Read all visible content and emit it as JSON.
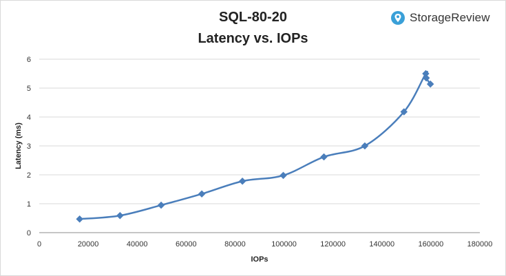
{
  "chart_data": {
    "type": "scatter",
    "title_line1": "SQL-80-20",
    "title_line2": "Latency vs. IOPs",
    "xlabel": "IOPs",
    "ylabel": "Latency (ms)",
    "xlim": [
      0,
      180000
    ],
    "ylim": [
      0,
      6
    ],
    "x_ticks": [
      "0",
      "20000",
      "40000",
      "60000",
      "80000",
      "100000",
      "120000",
      "140000",
      "160000",
      "180000"
    ],
    "y_ticks": [
      "0",
      "1",
      "2",
      "3",
      "4",
      "5",
      "6"
    ],
    "grid": "horizontal",
    "series": [
      {
        "color": "#4a7ebb",
        "marker": "diamond",
        "smoothed": true,
        "points": [
          {
            "x": 16500,
            "y": 0.47
          },
          {
            "x": 33000,
            "y": 0.59
          },
          {
            "x": 49800,
            "y": 0.95
          },
          {
            "x": 66400,
            "y": 1.34
          },
          {
            "x": 83000,
            "y": 1.78
          },
          {
            "x": 99700,
            "y": 1.98
          },
          {
            "x": 116300,
            "y": 2.62
          },
          {
            "x": 133000,
            "y": 3.0
          },
          {
            "x": 149000,
            "y": 4.18
          },
          {
            "x": 157900,
            "y": 5.5
          },
          {
            "x": 158100,
            "y": 5.35
          },
          {
            "x": 159800,
            "y": 5.14
          }
        ]
      }
    ]
  },
  "logo": {
    "text": "StorageReview",
    "icon": "storagereview-logo-icon",
    "color": "#3aa0d8"
  }
}
